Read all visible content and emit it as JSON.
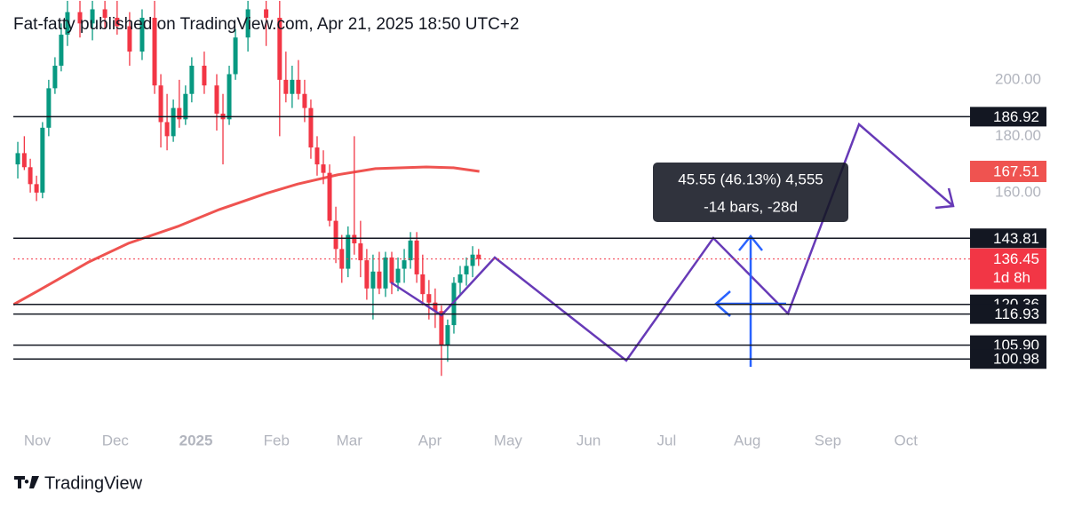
{
  "chart_data": {
    "type": "candlestick",
    "header": "Fat-fatty published on TradingView.com, Apr 21, 2025 18:50 UTC+2",
    "footer": "TradingView",
    "xlim": [
      -9.22,
      358
    ],
    "ylim": [
      78.7,
      228.3
    ],
    "xticks": [
      {
        "value": 0,
        "label": "Nov"
      },
      {
        "value": 30,
        "label": "Dec"
      },
      {
        "value": 61,
        "label": "2025"
      },
      {
        "value": 92,
        "label": "Feb"
      },
      {
        "value": 120,
        "label": "Mar"
      },
      {
        "value": 151,
        "label": "Apr"
      },
      {
        "value": 181,
        "label": "May"
      },
      {
        "value": 212,
        "label": "Jun"
      },
      {
        "value": 242,
        "label": "Jul"
      },
      {
        "value": 273,
        "label": "Aug"
      },
      {
        "value": 304,
        "label": "Sep"
      },
      {
        "value": 334,
        "label": "Oct"
      }
    ],
    "yticks": [
      {
        "value": 160,
        "label": "160.00"
      },
      {
        "value": 180,
        "label": "180.00"
      },
      {
        "value": 200,
        "label": "200.00"
      }
    ],
    "up_color": "#089981",
    "down_color": "#f23645",
    "x": [
      -7.5,
      -5,
      -2.7,
      -0.3,
      2,
      4.4,
      6.8,
      9.2,
      11.6,
      16.4,
      21.2,
      26,
      30.7,
      35.5,
      40.3,
      45.1,
      47.5,
      49.9,
      52.3,
      54.6,
      57,
      59.4,
      64.2,
      69,
      71.4,
      73.8,
      76.2,
      81,
      88,
      93.2,
      95.6,
      98,
      100.4,
      102.8,
      105.2,
      107.6,
      110,
      112.4,
      114.8,
      117.1,
      119.5,
      121.9,
      124.3,
      126.7,
      129.1,
      131.5,
      133.9,
      136.3,
      138.7,
      141.1,
      143.5,
      145.9,
      148.2,
      150.6,
      153,
      155.4,
      157.8,
      160.2,
      162.6,
      165,
      167.4,
      169.7
    ],
    "open": [
      170,
      174,
      169,
      163,
      160,
      183,
      197,
      205,
      216,
      224,
      220,
      225,
      222,
      219,
      210,
      222,
      198,
      185,
      180,
      190,
      186,
      195,
      205,
      198,
      188,
      186,
      202,
      215,
      225,
      222,
      200,
      195,
      200,
      195,
      190,
      176,
      170,
      167,
      150,
      140,
      133,
      145,
      142,
      136,
      126,
      132,
      126,
      137,
      128,
      133,
      136,
      143,
      131,
      124,
      121,
      118,
      106,
      113,
      128,
      131,
      134,
      138
    ],
    "high": [
      178,
      180,
      172,
      166,
      185,
      200,
      208,
      220,
      228,
      228,
      228,
      228,
      228,
      224,
      225,
      228,
      202,
      195,
      193,
      200,
      198,
      208,
      210,
      202,
      195,
      205,
      218,
      228,
      228,
      228,
      210,
      205,
      207,
      200,
      193,
      180,
      175,
      170,
      155,
      145,
      148,
      180,
      150,
      140,
      138,
      139,
      139,
      139,
      137,
      140,
      146,
      146,
      138,
      129,
      126,
      120,
      115,
      130,
      134,
      137,
      141,
      140
    ],
    "low": [
      165,
      168,
      160,
      157,
      158,
      180,
      195,
      203,
      212,
      215,
      214,
      218,
      216,
      205,
      207,
      195,
      176,
      175,
      178,
      183,
      184,
      192,
      195,
      182,
      170,
      184,
      200,
      210,
      212,
      180,
      192,
      190,
      193,
      185,
      172,
      166,
      163,
      148,
      135,
      128,
      130,
      138,
      130,
      122,
      115,
      124,
      123,
      124,
      125,
      128,
      133,
      128,
      120,
      115,
      112,
      95,
      100,
      110,
      124,
      127,
      130,
      134
    ],
    "close": [
      174,
      169,
      163,
      160,
      183,
      197,
      205,
      216,
      224,
      220,
      225,
      222,
      219,
      210,
      222,
      198,
      185,
      180,
      190,
      186,
      195,
      205,
      198,
      188,
      186,
      202,
      215,
      225,
      222,
      200,
      195,
      200,
      195,
      190,
      176,
      170,
      167,
      150,
      140,
      133,
      145,
      142,
      136,
      126,
      132,
      126,
      137,
      128,
      133,
      136,
      143,
      131,
      124,
      121,
      118,
      106,
      113,
      128,
      131,
      134,
      138,
      136.45
    ],
    "ma": {
      "color": "#ef5350",
      "x": [
        -9.2,
        0,
        19.8,
        35,
        54,
        70,
        88,
        100,
        115.4,
        130,
        149.6,
        160,
        170
      ],
      "values": [
        120.3,
        125,
        135.4,
        142,
        148,
        154,
        159.7,
        163,
        166.3,
        168.5,
        169.1,
        168.8,
        167.51
      ]
    },
    "ma_label": 167.51,
    "last_price": 136.45,
    "countdown": "1d 8h",
    "levels": [
      186.92,
      143.81,
      120.36,
      116.93,
      {
        "value": 105.9,
        "label": "105.90"
      },
      100.98
    ],
    "measure": {
      "line1": "45.55 (46.13%) 4,555",
      "line2": "-14 bars, -28d"
    }
  }
}
